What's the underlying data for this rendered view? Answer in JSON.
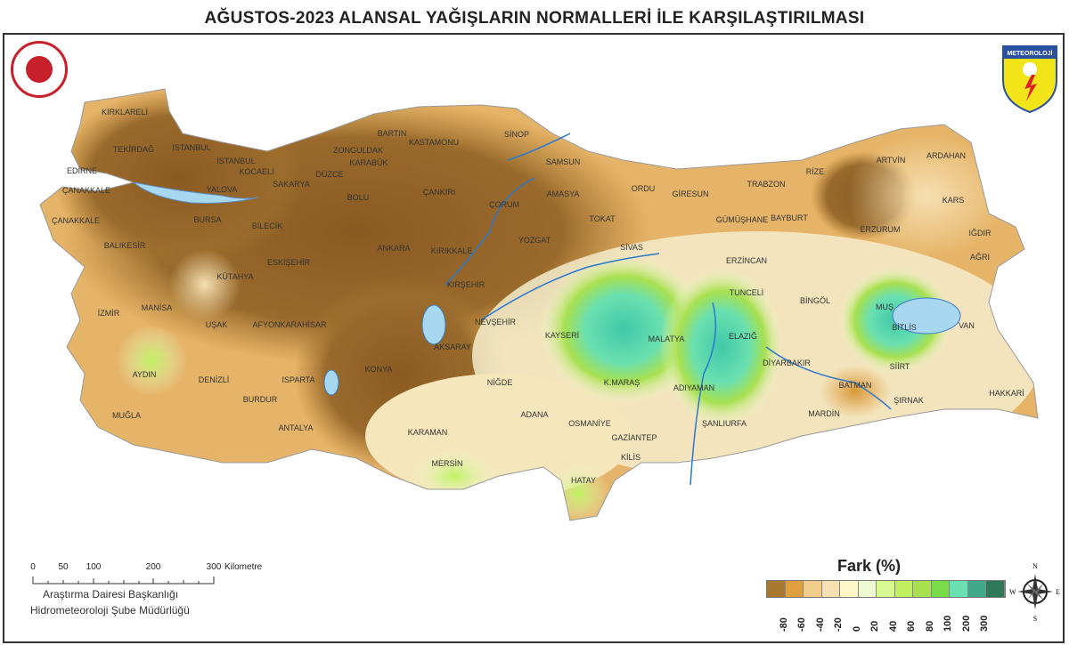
{
  "title": "AĞUSTOS-2023 ALANSAL YAĞIŞLARIN NORMALLERİ İLE KARŞILAŞTIRILMASI",
  "logos": {
    "left": "seal-icon",
    "right_text": "METEOROLOJİ"
  },
  "legend": {
    "title": "Fark (%)",
    "colors": [
      "#a8782e",
      "#e0a040",
      "#f2cc88",
      "#f6e0b2",
      "#fef8c8",
      "#eefad2",
      "#d8f890",
      "#c0f060",
      "#a8e050",
      "#78dc48",
      "#6ae0b0",
      "#40a888",
      "#2f7858"
    ],
    "labels": [
      "-80",
      "-60",
      "-40",
      "-20",
      "0",
      "20",
      "40",
      "60",
      "80",
      "100",
      "200",
      "300"
    ]
  },
  "scale": {
    "ticks": [
      "0",
      "50",
      "100",
      "200",
      "300"
    ],
    "unit": "Kilometre"
  },
  "credits": [
    "Araştırma Dairesi Başkanlığı",
    "Hidrometeoroloji Şube Müdürlüğü"
  ],
  "compass": {
    "n": "N",
    "s": "S",
    "e": "E",
    "w": "W"
  },
  "cities": [
    "KIRKLARELİ",
    "TEKİRDAĞ",
    "İSTANBUL",
    "EDİRNE",
    "İSTANBUL",
    "KOCAELİ",
    "ÇANAKKALE",
    "YALOVA",
    "SAKARYA",
    "DÜZCE",
    "ZONGULDAK",
    "BARTIN",
    "KARABÜK",
    "KASTAMONU",
    "SİNOP",
    "SAMSUN",
    "ÇANAKKALE",
    "BURSA",
    "BİLECİK",
    "BOLU",
    "ÇANKIRI",
    "ÇORUM",
    "AMASYA",
    "TOKAT",
    "ORDU",
    "GİRESUN",
    "TRABZON",
    "RİZE",
    "ARTVİN",
    "ARDAHAN",
    "KARS",
    "GÜMÜŞHANE",
    "BAYBURT",
    "ERZURUM",
    "IĞDIR",
    "AĞRI",
    "BALIKESİR",
    "ESKİŞEHİR",
    "ANKARA",
    "KIRIKKALE",
    "YOZGAT",
    "SİVAS",
    "ERZİNCAN",
    "KÜTAHYA",
    "KIRŞEHİR",
    "TUNCELİ",
    "BİNGÖL",
    "MUŞ",
    "MANİSA",
    "UŞAK",
    "AFYONKARAHİSAR",
    "NEVŞEHİR",
    "KAYSERİ",
    "MALATYA",
    "ELAZIĞ",
    "BİTLİS",
    "VAN",
    "İZMİR",
    "AYDIN",
    "DENİZLİ",
    "ISPARTA",
    "AKSARAY",
    "KONYA",
    "NİĞDE",
    "K.MARAŞ",
    "DİYARBAKIR",
    "SİİRT",
    "BATMAN",
    "HAKKARİ",
    "ADIYAMAN",
    "ŞIRNAK",
    "MARDİN",
    "ŞANLIURFA",
    "BURDUR",
    "MUĞLA",
    "ADANA",
    "OSMANİYE",
    "GAZİANTEP",
    "KİLİS",
    "ANTALYA",
    "KARAMAN",
    "MERSİN",
    "HATAY"
  ]
}
